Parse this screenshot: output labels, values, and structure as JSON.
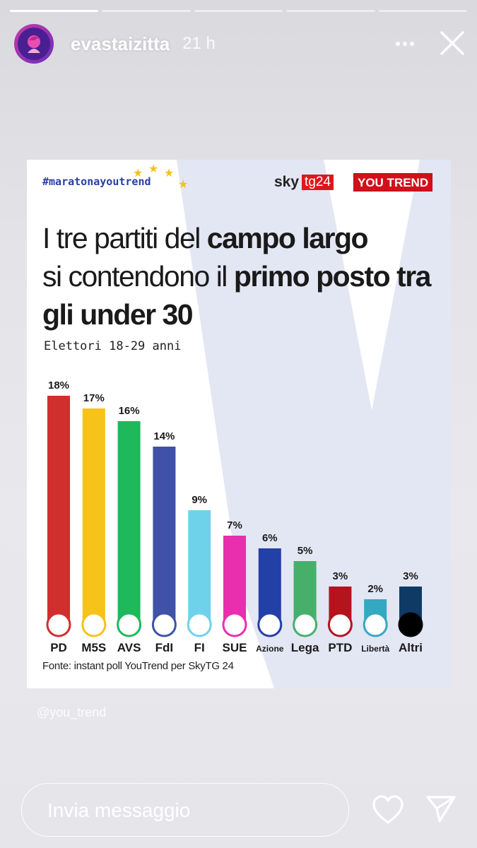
{
  "story": {
    "progress_segments": [
      1.0,
      0.0,
      0.0,
      0.0,
      0.0
    ],
    "username": "evastaizitta",
    "time": "21 h",
    "icons": {
      "menu": "more-dots-icon",
      "close": "close-icon",
      "like": "heart-icon",
      "send": "send-icon"
    }
  },
  "post": {
    "hashtag": "#maratonayoutrend",
    "sky_logo": "sky",
    "sky_tg": "tg24",
    "youtrend_logo": "YOU TREND",
    "title_parts": [
      "I tre partiti del ",
      "campo largo",
      " si contendono il ",
      "primo posto tra gli under 30"
    ],
    "subtitle": "Elettori 18-29 anni",
    "source": "Fonte: instant poll YouTrend per SkyTG 24",
    "watermark": "@you_trend"
  },
  "chart_data": {
    "type": "bar",
    "categories": [
      "PD",
      "M5S",
      "AVS",
      "FdI",
      "FI",
      "SUE",
      "Azione",
      "Lega",
      "PTD",
      "Libertà",
      "Altri"
    ],
    "values": [
      18,
      17,
      16,
      14,
      9,
      7,
      6,
      5,
      3,
      2,
      3
    ],
    "value_labels": [
      "18%",
      "17%",
      "16%",
      "14%",
      "9%",
      "7%",
      "6%",
      "5%",
      "3%",
      "2%",
      "3%"
    ],
    "colors": [
      "#d12e2e",
      "#f6c31b",
      "#1fb85a",
      "#3f51a8",
      "#6ed3ea",
      "#e92fae",
      "#2340a7",
      "#46b06a",
      "#b5141f",
      "#33a9c2",
      "#0f3a66"
    ],
    "title": "I tre partiti del campo largo si contendono il primo posto tra gli under 30",
    "subtitle": "Elettori 18-29 anni",
    "ylim": [
      0,
      18
    ],
    "grid": false
  },
  "footer": {
    "message_placeholder": "Invia messaggio"
  }
}
